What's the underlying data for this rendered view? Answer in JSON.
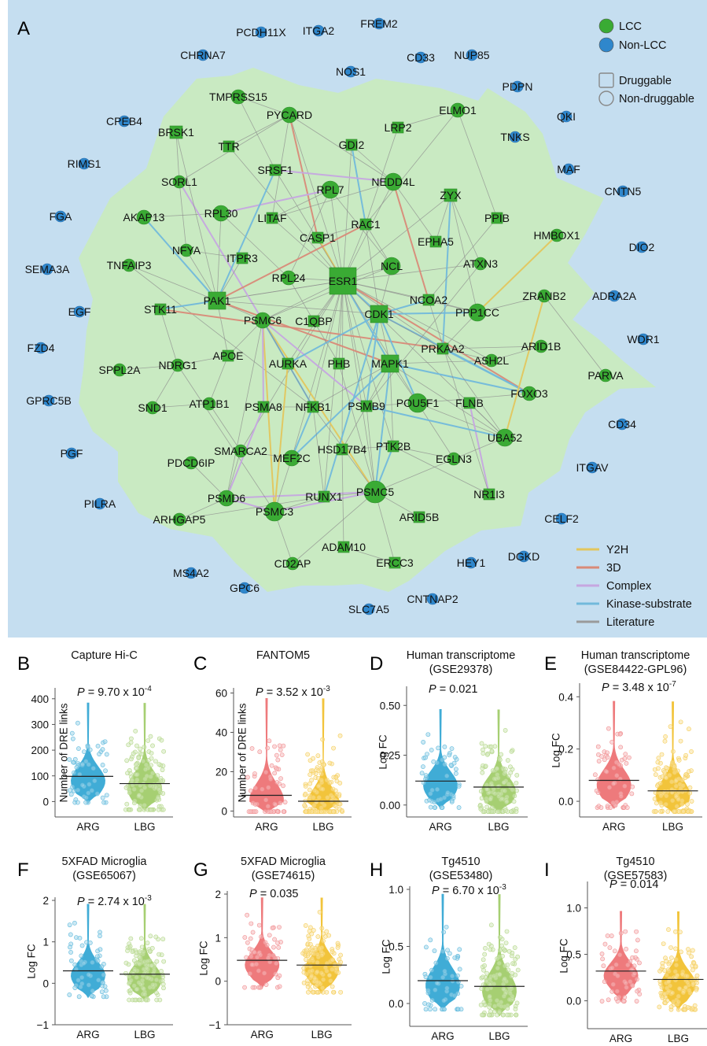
{
  "panel_a": {
    "letter": "A",
    "legend_nodes": [
      {
        "label": "LCC",
        "color": "#3aab34"
      },
      {
        "label": "Non-LCC",
        "color": "#2f87cc"
      }
    ],
    "legend_shapes": [
      {
        "label": "Druggable",
        "shape": "square"
      },
      {
        "label": "Non-druggable",
        "shape": "circle"
      }
    ],
    "legend_edges": [
      {
        "label": "Y2H",
        "color": "#e3c65d"
      },
      {
        "label": "3D",
        "color": "#d98a78"
      },
      {
        "label": "Complex",
        "color": "#c6a7e0"
      },
      {
        "label": "Kinase-substrate",
        "color": "#72b9db"
      },
      {
        "label": "Literature",
        "color": "#9a9a9a"
      }
    ],
    "lcc_nodes": [
      "TMPRSS15",
      "PYCARD",
      "ELMO1",
      "BRSK1",
      "LRP2",
      "TTR",
      "GDI2",
      "SORL1",
      "SRSF1",
      "RPL7",
      "NEDD4L",
      "ZYX",
      "AKAP13",
      "RPL30",
      "LITAF",
      "RAC1",
      "PPIB",
      "CASP1",
      "EPHA5",
      "HMBOX1",
      "NFYA",
      "TNFAIP3",
      "ITPR3",
      "ATXN3",
      "NCL",
      "ESR1",
      "RPL24",
      "ZRANB2",
      "NCOA2",
      "STK11",
      "PAK1",
      "PPP1CC",
      "PSMC6",
      "C1QBP",
      "CDK1",
      "ARID1B",
      "PRKAA2",
      "APOE",
      "SPPL2A",
      "NDRG1",
      "AURKA",
      "PHB",
      "MAPK1",
      "ASH2L",
      "PARVA",
      "FOXO3",
      "SND1",
      "ATP1B1",
      "PSMA8",
      "NFKB1",
      "PSMB9",
      "POU5F1",
      "FLNB",
      "UBA52",
      "SMARCA2",
      "PTK2B",
      "PDCD6IP",
      "MEF2C",
      "HSD17B4",
      "EGLN3",
      "PSMC5",
      "RUNX1",
      "NR1I3",
      "PSMD6",
      "PSMC3",
      "ARHGAP5",
      "ARID5B",
      "ADAM10",
      "CD2AP",
      "ERCC3"
    ],
    "non_lcc_nodes": [
      "PCDH11X",
      "ITGA2",
      "FREM2",
      "CHRNA7",
      "CD33",
      "NUP85",
      "NOS1",
      "PDPN",
      "CPEB4",
      "QKI",
      "TNKS",
      "RIMS1",
      "MAF",
      "CNTN5",
      "FGA",
      "DIO2",
      "SEMA3A",
      "ADRA2A",
      "EGF",
      "WDR1",
      "FZD4",
      "GPRC5B",
      "CD34",
      "PGF",
      "ITGAV",
      "PILRA",
      "CELF2",
      "DGKD",
      "HEY1",
      "MS4A2",
      "GPC6",
      "CNTNAP2",
      "SLC7A5"
    ]
  },
  "chart_data": [
    {
      "type": "violin",
      "letter": "B",
      "title": [
        "Capture Hi-C",
        ""
      ],
      "p_text": "P = 9.70 x 10",
      "p_exp": "-4",
      "ylabel": "Number of DRE links",
      "yticks": [
        0,
        100,
        200,
        300,
        400
      ],
      "ylim": [
        -60,
        430
      ],
      "categories": [
        "ARG",
        "LBG"
      ],
      "medians": [
        98,
        70
      ],
      "colors": [
        "#2ba3d1",
        "#9cca63"
      ]
    },
    {
      "type": "violin",
      "letter": "C",
      "title": [
        "FANTOM5",
        ""
      ],
      "p_text": "P = 3.52 x 10",
      "p_exp": "-3",
      "ylabel": "Number of DRE links",
      "yticks": [
        0,
        20,
        40,
        60
      ],
      "ylim": [
        -3,
        61
      ],
      "categories": [
        "ARG",
        "LBG"
      ],
      "medians": [
        8,
        5
      ],
      "colors": [
        "#ec6b6e",
        "#f1be26"
      ]
    },
    {
      "type": "violin",
      "letter": "D",
      "title": [
        "Human transcriptome",
        "(GSE29378)"
      ],
      "p_text": "P = 0.021",
      "p_exp": "",
      "ylabel": "Log FC",
      "yticks": [
        0.0,
        0.25,
        0.5
      ],
      "tick_labels": [
        "0.00",
        "0.25",
        "0.50"
      ],
      "ylim": [
        -0.06,
        0.58
      ],
      "categories": [
        "ARG",
        "LBG"
      ],
      "medians": [
        0.12,
        0.09
      ],
      "colors": [
        "#2ba3d1",
        "#9cca63"
      ]
    },
    {
      "type": "violin",
      "letter": "E",
      "title": [
        "Human transcriptome",
        "(GSE84422-GPL96)"
      ],
      "p_text": "P = 3.48 x 10",
      "p_exp": "-7",
      "ylabel": "Log FC",
      "yticks": [
        0.0,
        0.2,
        0.4
      ],
      "tick_labels": [
        "0.0",
        "0.2",
        "0.4"
      ],
      "ylim": [
        -0.06,
        0.44
      ],
      "categories": [
        "ARG",
        "LBG"
      ],
      "medians": [
        0.08,
        0.04
      ],
      "colors": [
        "#ec6b6e",
        "#f1be26"
      ]
    },
    {
      "type": "violin",
      "letter": "F",
      "title": [
        "5XFAD Microglia",
        "(GSE65067)"
      ],
      "p_text": "P = 2.74 x 10",
      "p_exp": "-3",
      "ylabel": "Log FC",
      "yticks": [
        -1,
        0,
        1,
        2
      ],
      "tick_labels": [
        "−1",
        "0",
        "1",
        "2"
      ],
      "ylim": [
        -1,
        2
      ],
      "categories": [
        "ARG",
        "LBG"
      ],
      "medians": [
        0.3,
        0.22
      ],
      "colors": [
        "#2ba3d1",
        "#9cca63"
      ]
    },
    {
      "type": "violin",
      "letter": "G",
      "title": [
        "5XFAD Microglia",
        "(GSE74615)"
      ],
      "p_text": "P = 0.035",
      "p_exp": "",
      "ylabel": "Log FC",
      "yticks": [
        -1,
        0,
        1,
        2
      ],
      "tick_labels": [
        "−1",
        "0",
        "1",
        "2"
      ],
      "ylim": [
        -1,
        2
      ],
      "categories": [
        "ARG",
        "LBG"
      ],
      "medians": [
        0.48,
        0.37
      ],
      "colors": [
        "#ec6b6e",
        "#f1be26"
      ]
    },
    {
      "type": "violin",
      "letter": "H",
      "title": [
        "Tg4510",
        "(GSE53480)"
      ],
      "p_text": "P = 6.70 x 10",
      "p_exp": "-3",
      "ylabel": "Log FC",
      "yticks": [
        0.0,
        0.5,
        1.0
      ],
      "tick_labels": [
        "0.0",
        "0.5",
        "1.0"
      ],
      "ylim": [
        -0.2,
        1.0
      ],
      "categories": [
        "ARG",
        "LBG"
      ],
      "medians": [
        0.2,
        0.15
      ],
      "colors": [
        "#2ba3d1",
        "#9cca63"
      ]
    },
    {
      "type": "violin",
      "letter": "I",
      "title": [
        "Tg4510",
        "(GSE57583)"
      ],
      "p_text": "P = 0.014",
      "p_exp": "",
      "ylabel": "Log FC",
      "yticks": [
        0.0,
        0.5,
        1.0
      ],
      "tick_labels": [
        "0.0",
        "0.5",
        "1.0"
      ],
      "ylim": [
        -0.3,
        1.25
      ],
      "categories": [
        "ARG",
        "LBG"
      ],
      "medians": [
        0.32,
        0.23
      ],
      "colors": [
        "#ec6b6e",
        "#f1be26"
      ]
    }
  ]
}
